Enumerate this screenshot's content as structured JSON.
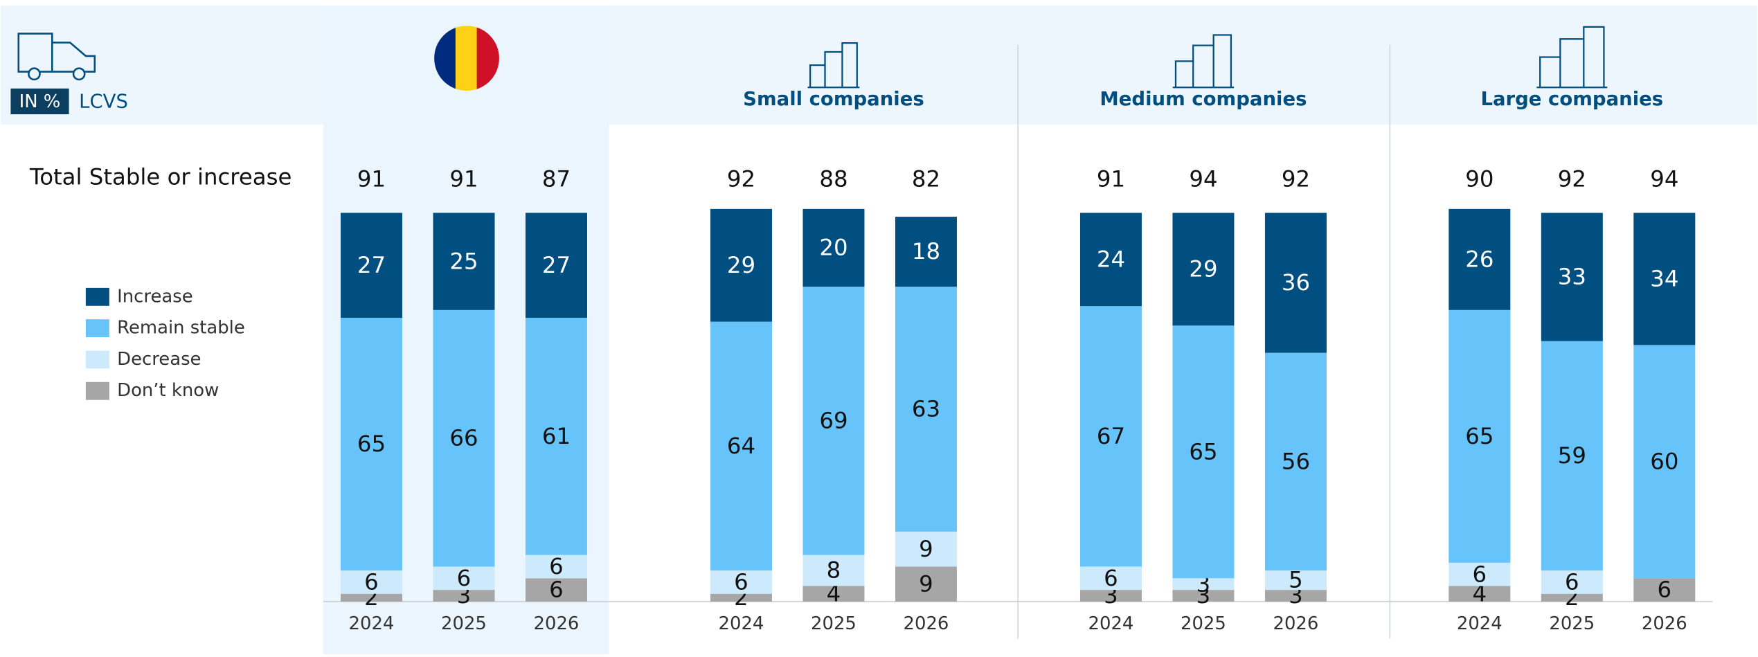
{
  "chart_data": {
    "type": "bar",
    "stacked": true,
    "unit_label": "IN %",
    "vehicle_label": "LCVS",
    "total_label": "Total Stable or increase",
    "categories": [
      "2024",
      "2025",
      "2026"
    ],
    "series": [
      {
        "name": "Increase",
        "color": "#004f80"
      },
      {
        "name": "Remain stable",
        "color": "#66c4fb"
      },
      {
        "name": "Decrease",
        "color": "#cdeafc"
      },
      {
        "name": "Don’t know",
        "color": "#a6a6a6"
      }
    ],
    "groups": [
      {
        "totals": [
          91,
          91,
          87
        ],
        "values": [
          [
            27,
            25,
            27
          ],
          [
            65,
            66,
            61
          ],
          [
            6,
            6,
            6
          ],
          [
            2,
            3,
            6
          ]
        ]
      },
      {
        "name": "Small companies",
        "totals": [
          92,
          88,
          82
        ],
        "values": [
          [
            29,
            20,
            18
          ],
          [
            64,
            69,
            63
          ],
          [
            6,
            8,
            9
          ],
          [
            2,
            4,
            9
          ]
        ]
      },
      {
        "name": "Medium companies",
        "totals": [
          91,
          94,
          92
        ],
        "values": [
          [
            24,
            29,
            36
          ],
          [
            67,
            65,
            56
          ],
          [
            6,
            3,
            5
          ],
          [
            3,
            3,
            3
          ]
        ]
      },
      {
        "name": "Large companies",
        "totals": [
          90,
          92,
          94
        ],
        "values": [
          [
            26,
            33,
            34
          ],
          [
            65,
            59,
            60
          ],
          [
            6,
            6,
            null
          ],
          [
            4,
            2,
            6
          ]
        ]
      }
    ]
  }
}
